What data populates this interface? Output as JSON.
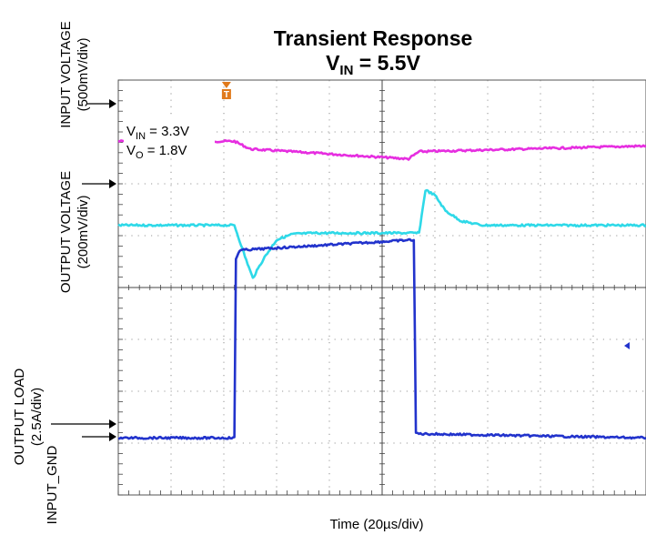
{
  "chart_data": {
    "type": "line",
    "title": "Transient Response",
    "subtitle": {
      "prefix": "V",
      "sub": "IN",
      "suffix": " = 5.5V"
    },
    "xlabel": "Time (20µs/div)",
    "x_divisions": 10,
    "y_divisions": 8,
    "grid": true,
    "annotations": [
      {
        "prefix": "V",
        "sub": "IN",
        "suffix": " = 3.3V"
      },
      {
        "prefix": "V",
        "sub": "O",
        "suffix": " = 1.8V"
      }
    ],
    "y_labels": [
      {
        "id": "input-voltage",
        "text": "INPUT VOLTAGE",
        "scale": "(500mV/div)"
      },
      {
        "id": "output-voltage",
        "text": "OUTPUT VOLTAGE",
        "scale": "(200mV/div)"
      },
      {
        "id": "output-load",
        "text": "OUTPUT LOAD",
        "scale": "(2.5A/div)"
      },
      {
        "id": "input-gnd",
        "text": "INPUT_GND",
        "scale": ""
      }
    ],
    "trigger_label": "T",
    "series": [
      {
        "id": "input-voltage",
        "color": "#e62ee0",
        "x": [
          0,
          2.2,
          2.5,
          5.5,
          5.7,
          10
        ],
        "y": [
          6.82,
          6.82,
          6.67,
          6.48,
          6.62,
          6.73
        ]
      },
      {
        "id": "output-voltage",
        "color": "#2ed9e8",
        "x": [
          0,
          2.2,
          2.4,
          2.55,
          2.75,
          3.0,
          3.3,
          3.7,
          5.7,
          5.82,
          6.0,
          6.2,
          6.5,
          6.9,
          10
        ],
        "y": [
          5.2,
          5.2,
          4.6,
          4.18,
          4.55,
          4.92,
          5.03,
          5.05,
          5.05,
          5.88,
          5.78,
          5.48,
          5.28,
          5.2,
          5.2
        ]
      },
      {
        "id": "output-load",
        "color": "#2233cc",
        "x": [
          0,
          2.2,
          2.23,
          2.3,
          5.6,
          5.64,
          5.7,
          10
        ],
        "y": [
          1.1,
          1.1,
          4.55,
          4.72,
          4.92,
          1.2,
          1.18,
          1.1
        ]
      }
    ]
  }
}
